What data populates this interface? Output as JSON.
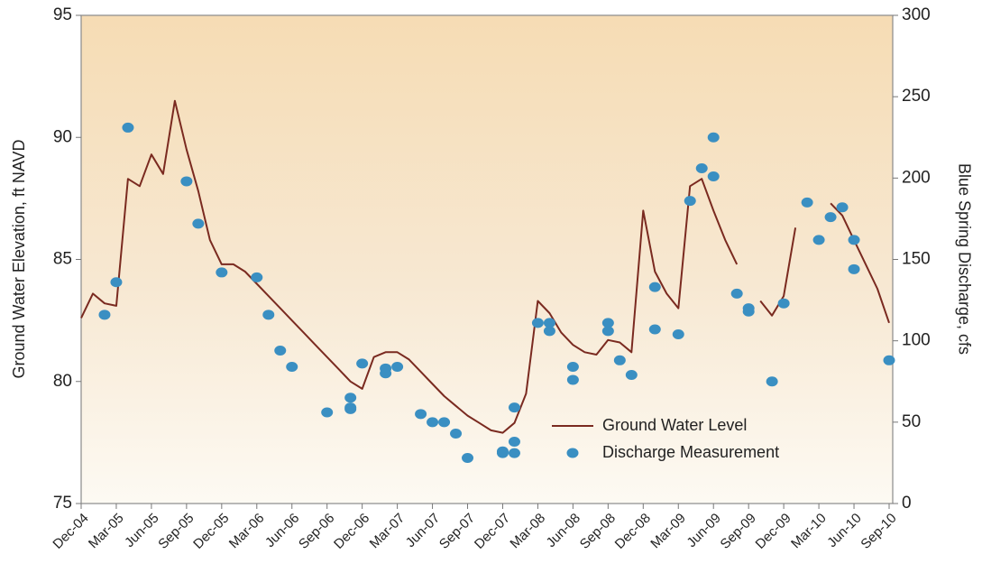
{
  "chart_data": {
    "type": "line",
    "y_label": "Ground Water  Elevation, ft NAVD",
    "y2_label": "Blue Spring Discharge, cfs",
    "xlim": [
      "2004-12",
      "2010-09"
    ],
    "xticks": [
      {
        "value": "2004-12",
        "label": "Dec-04"
      },
      {
        "value": "2005-03",
        "label": "Mar-05"
      },
      {
        "value": "2005-06",
        "label": "Jun-05"
      },
      {
        "value": "2005-09",
        "label": "Sep-05"
      },
      {
        "value": "2005-12",
        "label": "Dec-05"
      },
      {
        "value": "2006-03",
        "label": "Mar-06"
      },
      {
        "value": "2006-06",
        "label": "Jun-06"
      },
      {
        "value": "2006-09",
        "label": "Sep-06"
      },
      {
        "value": "2006-12",
        "label": "Dec-06"
      },
      {
        "value": "2007-03",
        "label": "Mar-07"
      },
      {
        "value": "2007-06",
        "label": "Jun-07"
      },
      {
        "value": "2007-09",
        "label": "Sep-07"
      },
      {
        "value": "2007-12",
        "label": "Dec-07"
      },
      {
        "value": "2008-03",
        "label": "Mar-08"
      },
      {
        "value": "2008-06",
        "label": "Jun-08"
      },
      {
        "value": "2008-09",
        "label": "Sep-08"
      },
      {
        "value": "2008-12",
        "label": "Dec-08"
      },
      {
        "value": "2009-03",
        "label": "Mar-09"
      },
      {
        "value": "2009-06",
        "label": "Jun-09"
      },
      {
        "value": "2009-09",
        "label": "Sep-09"
      },
      {
        "value": "2009-12",
        "label": "Dec-09"
      },
      {
        "value": "2010-03",
        "label": "Mar-10"
      },
      {
        "value": "2010-06",
        "label": "Jun-10"
      },
      {
        "value": "2010-09",
        "label": "Sep-10"
      }
    ],
    "ylim": [
      75,
      95
    ],
    "yticks": [
      75,
      80,
      85,
      90,
      95
    ],
    "y2lim": [
      0,
      300
    ],
    "y2ticks": [
      0,
      50,
      100,
      150,
      200,
      250,
      300
    ],
    "grid": false,
    "legend": "lower right",
    "series": [
      {
        "name": "Ground Water Level",
        "type": "line",
        "color": "#7a2a20",
        "x": [
          "2004-12",
          "2005-01",
          "2005-02",
          "2005-03",
          "2005-04",
          "2005-05",
          "2005-06",
          "2005-07",
          "2005-08",
          "2005-09",
          "2005-10",
          "2005-11",
          "2005-12",
          "2006-01",
          "2006-02",
          "2006-03",
          "2006-04",
          "2006-05",
          "2006-06",
          "2006-07",
          "2006-08",
          "2006-09",
          "2006-10",
          "2006-11",
          "2006-12",
          "2007-01",
          "2007-02",
          "2007-03",
          "2007-04",
          "2007-05",
          "2007-06",
          "2007-07",
          "2007-08",
          "2007-09",
          "2007-10",
          "2007-11",
          "2007-12",
          "2008-01",
          "2008-02",
          "2008-03",
          "2008-04",
          "2008-05",
          "2008-06",
          "2008-07",
          "2008-08",
          "2008-09",
          "2008-10",
          "2008-11",
          "2008-12",
          "2009-01",
          "2009-02",
          "2009-03",
          "2009-04",
          "2009-05",
          "2009-06",
          "2009-07",
          "2009-08",
          "2009-09",
          "2009-10",
          "2009-11",
          "2009-12",
          "2010-01",
          "2010-02",
          "2010-03",
          "2010-04",
          "2010-05",
          "2010-06",
          "2010-07",
          "2010-08",
          "2010-09"
        ],
        "values": [
          82.6,
          83.6,
          83.2,
          83.1,
          88.3,
          88.0,
          89.3,
          88.5,
          91.5,
          89.5,
          87.8,
          85.8,
          84.8,
          84.8,
          84.5,
          84.0,
          83.5,
          83.0,
          82.5,
          82.0,
          81.5,
          81.0,
          80.5,
          80.0,
          79.7,
          81.0,
          81.2,
          81.2,
          80.9,
          80.4,
          79.9,
          79.4,
          79.0,
          78.6,
          78.3,
          78.0,
          77.9,
          78.3,
          79.5,
          83.3,
          82.8,
          82.0,
          81.5,
          81.2,
          81.1,
          81.7,
          81.6,
          81.2,
          87.0,
          84.5,
          83.6,
          83.0,
          88.0,
          88.3,
          87.0,
          85.8,
          84.8,
          null,
          83.3,
          82.7,
          83.5,
          86.3,
          null,
          null,
          87.3,
          86.8,
          85.8,
          84.8,
          83.8,
          82.4
        ]
      },
      {
        "name": "Discharge Measurement",
        "type": "scatter",
        "color": "#3a8fc2",
        "axis": "y2",
        "x": [
          "2005-02",
          "2005-03",
          "2005-04",
          "2005-09",
          "2005-10",
          "2005-12",
          "2006-03",
          "2006-04",
          "2006-05",
          "2006-06",
          "2006-09",
          "2006-11",
          "2006-11",
          "2006-11",
          "2006-12",
          "2007-02",
          "2007-02",
          "2007-03",
          "2007-05",
          "2007-06",
          "2007-07",
          "2007-08",
          "2007-09",
          "2007-12",
          "2007-12",
          "2008-01",
          "2008-01",
          "2008-01",
          "2008-03",
          "2008-04",
          "2008-04",
          "2008-06",
          "2008-06",
          "2008-09",
          "2008-09",
          "2008-10",
          "2008-11",
          "2009-01",
          "2009-01",
          "2009-03",
          "2009-04",
          "2009-05",
          "2009-06",
          "2009-06",
          "2009-08",
          "2009-09",
          "2009-09",
          "2009-11",
          "2009-12",
          "2010-02",
          "2010-03",
          "2010-04",
          "2010-05",
          "2010-06",
          "2010-06",
          "2010-09"
        ],
        "values": [
          116,
          136,
          231,
          198,
          172,
          142,
          139,
          116,
          94,
          84,
          56,
          58,
          65,
          59,
          86,
          83,
          80,
          84,
          55,
          50,
          50,
          43,
          28,
          32,
          31,
          38,
          31,
          59,
          111,
          106,
          111,
          84,
          76,
          111,
          106,
          88,
          79,
          133,
          107,
          104,
          186,
          206,
          225,
          201,
          129,
          120,
          118,
          75,
          123,
          185,
          162,
          176,
          182,
          162,
          144,
          88
        ]
      }
    ]
  }
}
